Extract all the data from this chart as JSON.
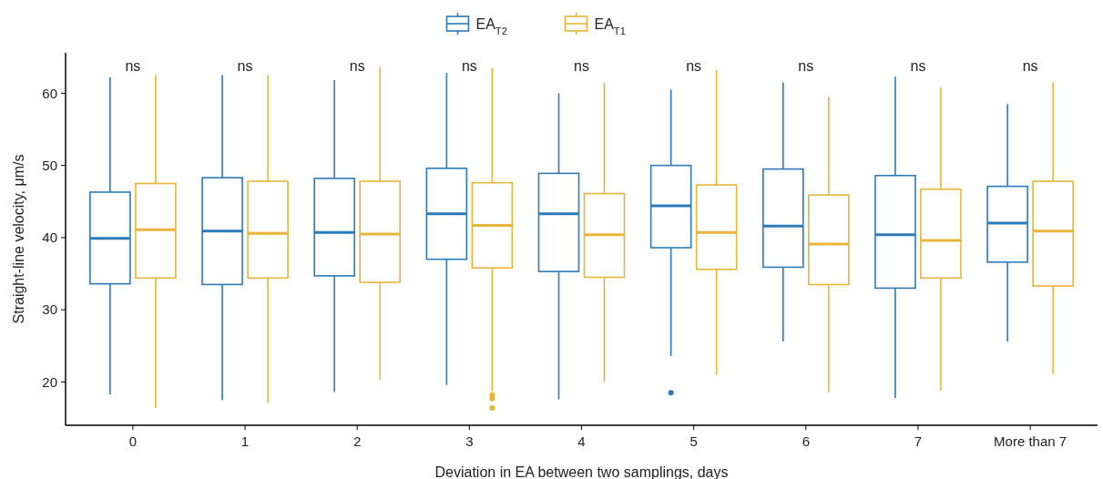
{
  "chart_data": {
    "type": "box",
    "xlabel": "Deviation in EA between two samplings, days",
    "ylabel": "Straight-line velocity, μm/s",
    "categories": [
      "0",
      "1",
      "2",
      "3",
      "4",
      "5",
      "6",
      "7",
      "More than 7"
    ],
    "ylim": [
      14,
      65.6
    ],
    "yticks": [
      20,
      30,
      40,
      50,
      60
    ],
    "grid": false,
    "legend": "top",
    "series": [
      {
        "name": "EA$_{T2}$",
        "color": "#2b7bba",
        "boxes": [
          {
            "low": 18.3,
            "q1": 33.6,
            "median": 39.9,
            "q3": 46.3,
            "high": 62.2
          },
          {
            "low": 17.5,
            "q1": 33.5,
            "median": 40.9,
            "q3": 48.3,
            "high": 62.5
          },
          {
            "low": 18.6,
            "q1": 34.7,
            "median": 40.7,
            "q3": 48.2,
            "high": 61.8
          },
          {
            "low": 19.6,
            "q1": 37.0,
            "median": 43.3,
            "q3": 49.6,
            "high": 62.8
          },
          {
            "low": 17.6,
            "q1": 35.3,
            "median": 43.3,
            "q3": 48.9,
            "high": 60.0
          },
          {
            "low": 23.6,
            "q1": 38.6,
            "median": 44.4,
            "q3": 50.0,
            "high": 60.5,
            "outliers": [
              18.5
            ]
          },
          {
            "low": 25.6,
            "q1": 35.9,
            "median": 41.6,
            "q3": 49.5,
            "high": 61.5
          },
          {
            "low": 17.8,
            "q1": 33.0,
            "median": 40.4,
            "q3": 48.6,
            "high": 62.3
          },
          {
            "low": 25.6,
            "q1": 36.6,
            "median": 42.0,
            "q3": 47.1,
            "high": 58.5
          }
        ]
      },
      {
        "name": "EA$_{T1}$",
        "color": "#e8b53a",
        "boxes": [
          {
            "low": 16.4,
            "q1": 34.4,
            "median": 41.1,
            "q3": 47.5,
            "high": 62.5
          },
          {
            "low": 17.1,
            "q1": 34.4,
            "median": 40.6,
            "q3": 47.8,
            "high": 62.5
          },
          {
            "low": 20.3,
            "q1": 33.8,
            "median": 40.5,
            "q3": 47.8,
            "high": 63.6
          },
          {
            "low": 18.7,
            "q1": 35.8,
            "median": 41.7,
            "q3": 47.6,
            "high": 63.5,
            "outliers": [
              18.2,
              17.7,
              16.4
            ]
          },
          {
            "low": 20.0,
            "q1": 34.5,
            "median": 40.4,
            "q3": 46.1,
            "high": 61.5
          },
          {
            "low": 21.0,
            "q1": 35.6,
            "median": 40.7,
            "q3": 47.3,
            "high": 63.2
          },
          {
            "low": 18.6,
            "q1": 33.5,
            "median": 39.1,
            "q3": 45.9,
            "high": 59.5
          },
          {
            "low": 18.8,
            "q1": 34.4,
            "median": 39.6,
            "q3": 46.7,
            "high": 60.8
          },
          {
            "low": 21.1,
            "q1": 33.3,
            "median": 40.9,
            "q3": 47.8,
            "high": 61.5
          }
        ]
      }
    ],
    "annotations": [
      "ns",
      "ns",
      "ns",
      "ns",
      "ns",
      "ns",
      "ns",
      "ns",
      "ns"
    ]
  }
}
